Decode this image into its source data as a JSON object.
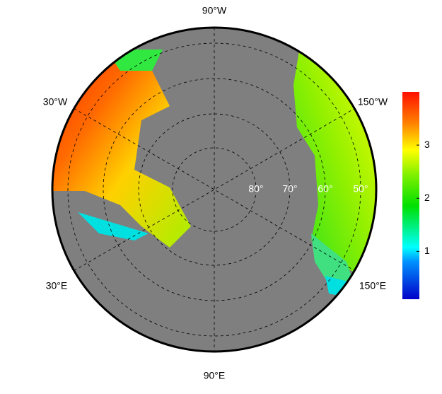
{
  "map": {
    "lon_labels": [
      "90°W",
      "30°W",
      "150°W",
      "30°E",
      "150°E",
      "90°E"
    ],
    "lat_labels": [
      "80°",
      "70°",
      "60°",
      "50°"
    ],
    "colorbar": {
      "range": [
        0.1,
        4.0
      ],
      "ticks": [
        1,
        2,
        3
      ]
    }
  }
}
